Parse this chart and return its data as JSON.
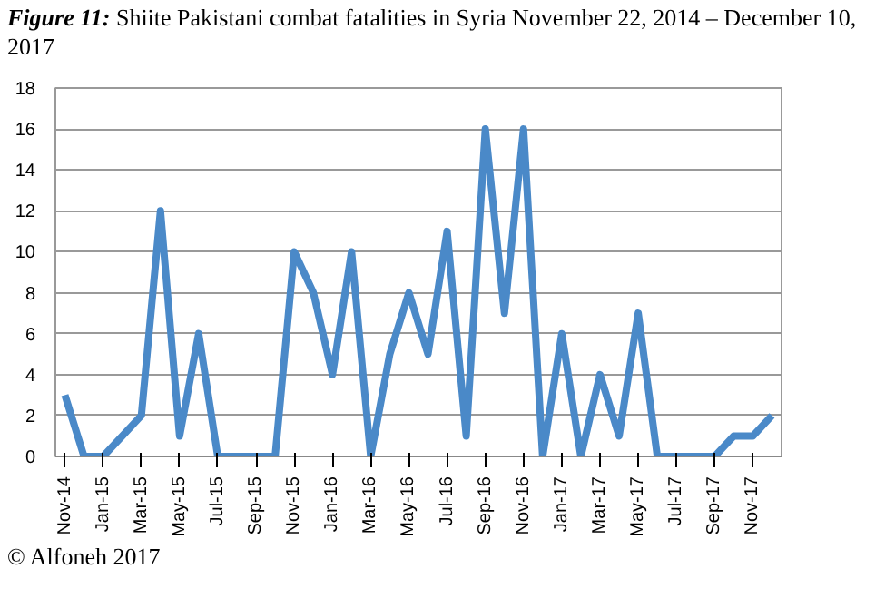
{
  "chart_data": {
    "type": "line",
    "title": "Figure 11: Shiite Pakistani combat fatalities in Syria November 22, 2014 – December 10, 2017",
    "categories": [
      "Nov-14",
      null,
      "Jan-15",
      null,
      "Mar-15",
      null,
      "May-15",
      null,
      "Jul-15",
      null,
      "Sep-15",
      null,
      "Nov-15",
      null,
      "Jan-16",
      null,
      "Mar-16",
      null,
      "May-16",
      null,
      "Jul-16",
      null,
      "Sep-16",
      null,
      "Nov-16",
      null,
      "Jan-17",
      null,
      "Mar-17",
      null,
      "May-17",
      null,
      "Jul-17",
      null,
      "Sep-17",
      null,
      "Nov-17",
      null
    ],
    "series": [
      {
        "color": "#4a89c8",
        "values": [
          3,
          0,
          0,
          1,
          2,
          12,
          1,
          6,
          0,
          0,
          0,
          0,
          10,
          8,
          4,
          10,
          0,
          5,
          8,
          5,
          11,
          1,
          16,
          7,
          16,
          0,
          6,
          0,
          4,
          1,
          7,
          0,
          0,
          0,
          0,
          1,
          1,
          2
        ]
      }
    ],
    "ylim": [
      0,
      18
    ],
    "yticks": [
      0,
      2,
      4,
      6,
      8,
      10,
      12,
      14,
      16,
      18
    ],
    "grid": "y",
    "marker": "none",
    "line_style": "solid",
    "annotations": [
      "© Alfoneh 2017"
    ]
  }
}
